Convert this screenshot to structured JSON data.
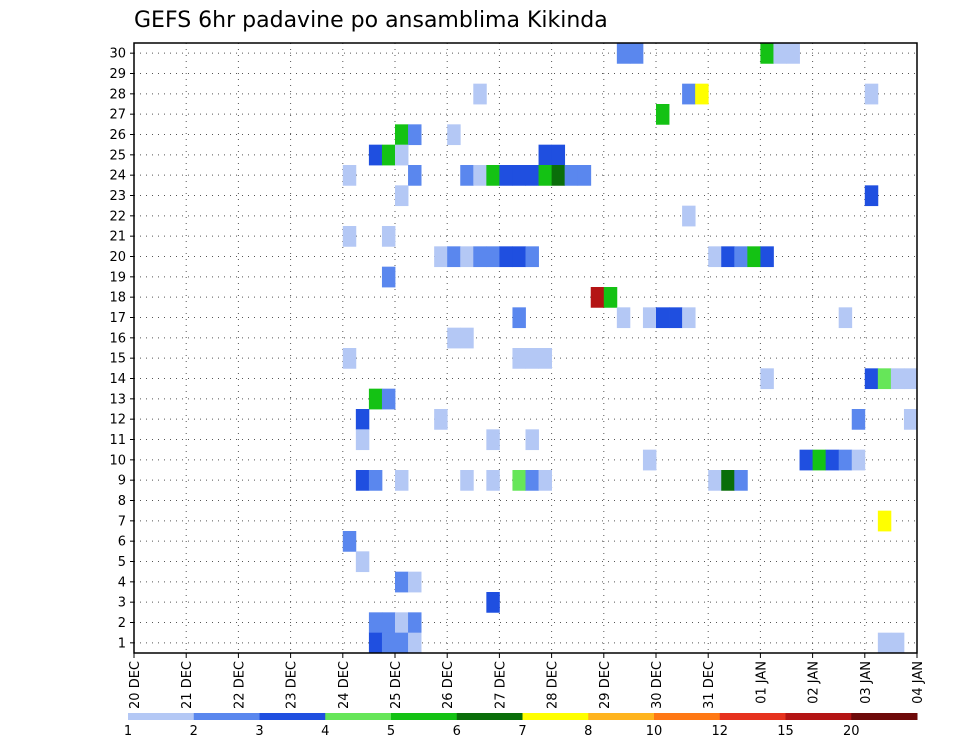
{
  "chart_data": {
    "type": "heatmap",
    "title": "GEFS 6hr padavine po ansamblima Kikinda",
    "xlabel": "",
    "ylabel": "",
    "x_ticks": [
      "20 DEC",
      "21 DEC",
      "22 DEC",
      "23 DEC",
      "24 DEC",
      "25 DEC",
      "26 DEC",
      "27 DEC",
      "28 DEC",
      "29 DEC",
      "30 DEC",
      "31 DEC",
      "01 JAN",
      "02 JAN",
      "03 JAN",
      "04 JAN"
    ],
    "y_ticks": [
      "1",
      "2",
      "3",
      "4",
      "5",
      "6",
      "7",
      "8",
      "9",
      "10",
      "11",
      "12",
      "13",
      "14",
      "15",
      "16",
      "17",
      "18",
      "19",
      "20",
      "21",
      "22",
      "23",
      "24",
      "25",
      "26",
      "27",
      "28",
      "29",
      "30"
    ],
    "xlim": [
      0,
      60
    ],
    "ylim": [
      0.5,
      30.5
    ],
    "x_unit": "6-hour steps from 20 DEC",
    "y_unit": "ensemble member",
    "colorbar": {
      "labels": [
        "1",
        "2",
        "3",
        "4",
        "5",
        "6",
        "7",
        "8",
        "10",
        "12",
        "15",
        "20"
      ],
      "colors": [
        "#b4c8f5",
        "#5a87ee",
        "#1f4fe0",
        "#66e659",
        "#14c214",
        "#0a6e0a",
        "#ffff00",
        "#ffb41e",
        "#ff7814",
        "#e6321e",
        "#b41414",
        "#6e0a0a"
      ]
    },
    "points": [
      {
        "m": 30,
        "t": [
          [
            37,
            2
          ],
          [
            38,
            2
          ],
          [
            48,
            5
          ],
          [
            49,
            1
          ],
          [
            50,
            1
          ]
        ]
      },
      {
        "m": 28,
        "t": [
          [
            26,
            1
          ],
          [
            42,
            2
          ],
          [
            43,
            7
          ],
          [
            56,
            1
          ]
        ]
      },
      {
        "m": 27,
        "t": [
          [
            40,
            5
          ]
        ]
      },
      {
        "m": 26,
        "t": [
          [
            20,
            5
          ],
          [
            21,
            2
          ],
          [
            24,
            1
          ]
        ]
      },
      {
        "m": 25,
        "t": [
          [
            18,
            3
          ],
          [
            19,
            5
          ],
          [
            20,
            1
          ],
          [
            31,
            3
          ],
          [
            32,
            3
          ]
        ]
      },
      {
        "m": 24,
        "t": [
          [
            16,
            1
          ],
          [
            21,
            2
          ],
          [
            25,
            2
          ],
          [
            26,
            1
          ],
          [
            27,
            5
          ],
          [
            28,
            3
          ],
          [
            29,
            3
          ],
          [
            30,
            3
          ],
          [
            31,
            5
          ],
          [
            32,
            6
          ],
          [
            33,
            2
          ],
          [
            34,
            2
          ]
        ]
      },
      {
        "m": 23,
        "t": [
          [
            20,
            1
          ],
          [
            56,
            3
          ]
        ]
      },
      {
        "m": 22,
        "t": [
          [
            42,
            1
          ]
        ]
      },
      {
        "m": 21,
        "t": [
          [
            16,
            1
          ],
          [
            19,
            1
          ]
        ]
      },
      {
        "m": 20,
        "t": [
          [
            23,
            1
          ],
          [
            24,
            2
          ],
          [
            25,
            1
          ],
          [
            26,
            2
          ],
          [
            27,
            2
          ],
          [
            28,
            3
          ],
          [
            29,
            3
          ],
          [
            30,
            2
          ],
          [
            44,
            1
          ],
          [
            45,
            3
          ],
          [
            46,
            2
          ],
          [
            47,
            5
          ],
          [
            48,
            3
          ]
        ]
      },
      {
        "m": 19,
        "t": [
          [
            19,
            2
          ]
        ]
      },
      {
        "m": 18,
        "t": [
          [
            35,
            11
          ],
          [
            36,
            5
          ]
        ]
      },
      {
        "m": 17,
        "t": [
          [
            29,
            2
          ],
          [
            37,
            1
          ],
          [
            39,
            1
          ],
          [
            40,
            3
          ],
          [
            41,
            3
          ],
          [
            42,
            1
          ],
          [
            54,
            1
          ]
        ]
      },
      {
        "m": 16,
        "t": [
          [
            24,
            1
          ],
          [
            25,
            1
          ]
        ]
      },
      {
        "m": 15,
        "t": [
          [
            16,
            1
          ],
          [
            29,
            1
          ],
          [
            30,
            1
          ],
          [
            31,
            1
          ]
        ]
      },
      {
        "m": 14,
        "t": [
          [
            48,
            1
          ],
          [
            56,
            3
          ],
          [
            57,
            4
          ],
          [
            58,
            1
          ],
          [
            59,
            1
          ]
        ]
      },
      {
        "m": 13,
        "t": [
          [
            18,
            5
          ],
          [
            19,
            2
          ]
        ]
      },
      {
        "m": 12,
        "t": [
          [
            17,
            3
          ],
          [
            23,
            1
          ],
          [
            55,
            2
          ],
          [
            59,
            1
          ]
        ]
      },
      {
        "m": 11,
        "t": [
          [
            17,
            1
          ],
          [
            27,
            1
          ],
          [
            30,
            1
          ]
        ]
      },
      {
        "m": 10,
        "t": [
          [
            39,
            1
          ],
          [
            51,
            3
          ],
          [
            52,
            5
          ],
          [
            53,
            3
          ],
          [
            54,
            2
          ],
          [
            55,
            1
          ]
        ]
      },
      {
        "m": 9,
        "t": [
          [
            17,
            3
          ],
          [
            18,
            2
          ],
          [
            20,
            1
          ],
          [
            25,
            1
          ],
          [
            27,
            1
          ],
          [
            29,
            4
          ],
          [
            30,
            2
          ],
          [
            31,
            1
          ],
          [
            44,
            1
          ],
          [
            45,
            6
          ],
          [
            46,
            2
          ]
        ]
      },
      {
        "m": 7,
        "t": [
          [
            57,
            7
          ]
        ]
      },
      {
        "m": 6,
        "t": [
          [
            16,
            2
          ]
        ]
      },
      {
        "m": 5,
        "t": [
          [
            17,
            1
          ]
        ]
      },
      {
        "m": 4,
        "t": [
          [
            20,
            2
          ],
          [
            21,
            1
          ]
        ]
      },
      {
        "m": 3,
        "t": [
          [
            27,
            3
          ]
        ]
      },
      {
        "m": 2,
        "t": [
          [
            18,
            2
          ],
          [
            19,
            2
          ],
          [
            20,
            1
          ],
          [
            21,
            2
          ]
        ]
      },
      {
        "m": 1,
        "t": [
          [
            18,
            3
          ],
          [
            19,
            2
          ],
          [
            20,
            2
          ],
          [
            21,
            1
          ],
          [
            57,
            1
          ],
          [
            58,
            1
          ]
        ]
      }
    ]
  }
}
